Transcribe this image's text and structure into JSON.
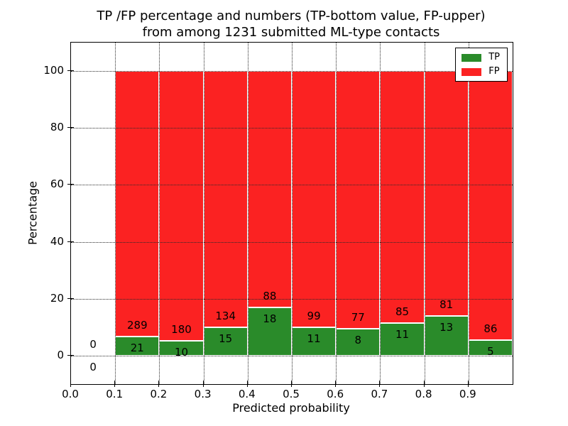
{
  "figure": {
    "title_line1": "TP /FP percentage and numbers (TP-bottom value, FP-upper)",
    "title_line2": "from among 1231 submitted ML-type contacts"
  },
  "chart_data": {
    "type": "bar",
    "stacked": true,
    "normalized_to": 100,
    "title": "TP /FP percentage and numbers (TP-bottom value, FP-upper) from among 1231 submitted ML-type contacts",
    "xlabel": "Predicted probability",
    "ylabel": "Percentage",
    "xlim": [
      0.0,
      1.0
    ],
    "ylim": [
      -10,
      110
    ],
    "xticks": [
      0.0,
      0.1,
      0.2,
      0.3,
      0.4,
      0.5,
      0.6,
      0.7,
      0.8,
      0.9
    ],
    "xtick_labels": [
      "0.0",
      "0.1",
      "0.2",
      "0.3",
      "0.4",
      "0.5",
      "0.6",
      "0.7",
      "0.8",
      "0.9"
    ],
    "yticks": [
      0,
      20,
      40,
      60,
      80,
      100
    ],
    "grid": "dotted",
    "legend_position": "upper-right",
    "total_contacts": 1231,
    "colors": {
      "tp": "#2a8b2a",
      "fp": "#fb2222",
      "bar_edge": "#ffffff"
    },
    "legend": [
      {
        "label": "TP",
        "color": "#2a8b2a"
      },
      {
        "label": "FP",
        "color": "#fb2222"
      }
    ],
    "bins": [
      {
        "range": [
          0.0,
          0.1
        ],
        "tp": 0,
        "fp": 0,
        "tp_pct": 0,
        "fp_pct": 0
      },
      {
        "range": [
          0.1,
          0.2
        ],
        "tp": 21,
        "fp": 289,
        "tp_pct": 6.77,
        "fp_pct": 93.23
      },
      {
        "range": [
          0.2,
          0.3
        ],
        "tp": 10,
        "fp": 180,
        "tp_pct": 5.26,
        "fp_pct": 94.74
      },
      {
        "range": [
          0.3,
          0.4
        ],
        "tp": 15,
        "fp": 134,
        "tp_pct": 10.07,
        "fp_pct": 89.93
      },
      {
        "range": [
          0.4,
          0.5
        ],
        "tp": 18,
        "fp": 88,
        "tp_pct": 16.98,
        "fp_pct": 83.02
      },
      {
        "range": [
          0.5,
          0.6
        ],
        "tp": 11,
        "fp": 99,
        "tp_pct": 10.0,
        "fp_pct": 90.0
      },
      {
        "range": [
          0.6,
          0.7
        ],
        "tp": 8,
        "fp": 77,
        "tp_pct": 9.41,
        "fp_pct": 90.59
      },
      {
        "range": [
          0.7,
          0.8
        ],
        "tp": 11,
        "fp": 85,
        "tp_pct": 11.46,
        "fp_pct": 88.54
      },
      {
        "range": [
          0.8,
          0.9
        ],
        "tp": 13,
        "fp": 81,
        "tp_pct": 13.83,
        "fp_pct": 86.17
      },
      {
        "range": [
          0.9,
          1.0
        ],
        "tp": 5,
        "fp": 86,
        "tp_pct": 5.49,
        "fp_pct": 94.51
      }
    ]
  }
}
